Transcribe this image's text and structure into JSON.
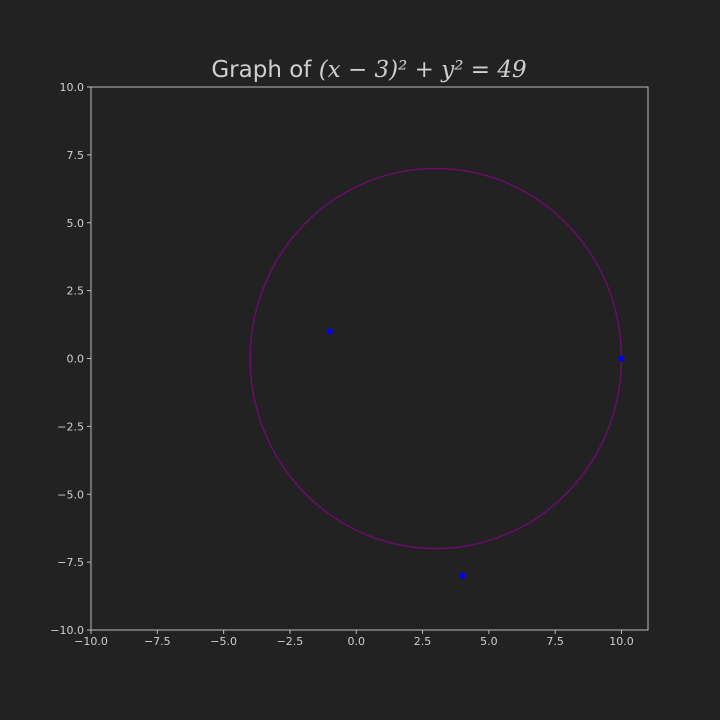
{
  "colors": {
    "background": "#222222",
    "axes_frame": "#bbbbbb",
    "text": "#cfcfcf",
    "curve": "#6a0d6a",
    "points": "#0000ff"
  },
  "chart_data": {
    "type": "scatter",
    "title": {
      "prefix": "Graph of ",
      "equation": "(x − 3)² + y² = 49"
    },
    "xlabel": "",
    "ylabel": "",
    "xlim": [
      -10,
      11
    ],
    "ylim": [
      -10,
      10
    ],
    "grid": false,
    "xticks": [
      -10,
      -7.5,
      -5,
      -2.5,
      0,
      2.5,
      5,
      7.5,
      10
    ],
    "xtick_labels": [
      "−10.0",
      "−7.5",
      "−5.0",
      "−2.5",
      "0.0",
      "2.5",
      "5.0",
      "7.5",
      "10.0"
    ],
    "yticks": [
      10,
      7.5,
      5,
      2.5,
      0,
      -2.5,
      -5,
      -7.5,
      -10
    ],
    "ytick_labels": [
      "10.0",
      "7.5",
      "5.0",
      "2.5",
      "0.0",
      "−2.5",
      "−5.0",
      "−7.5",
      "−10.0"
    ],
    "circle": {
      "center": [
        3,
        0
      ],
      "radius": 7
    },
    "points": [
      {
        "x": -1,
        "y": 1
      },
      {
        "x": 10,
        "y": 0
      },
      {
        "x": 4,
        "y": -8
      }
    ]
  }
}
